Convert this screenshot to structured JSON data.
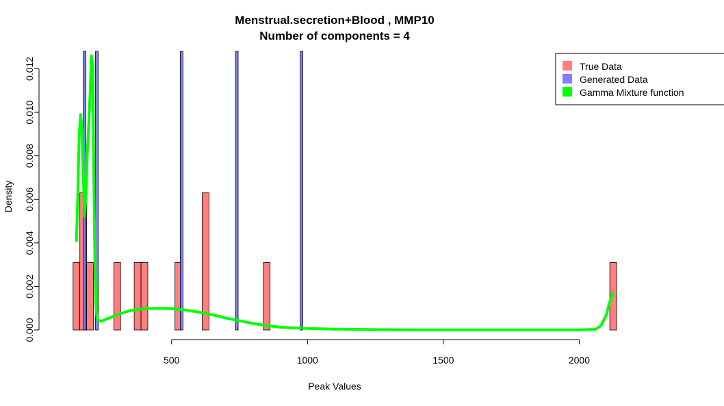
{
  "chart_data": {
    "type": "bar",
    "title": "Menstrual.secretion+Blood , MMP10",
    "subtitle": "Number of components =  4",
    "xlabel": "Peak Values",
    "ylabel": "Density",
    "xlim": [
      50,
      2150
    ],
    "ylim": [
      0,
      0.0128
    ],
    "x_ticks": [
      500,
      1000,
      1500,
      2000
    ],
    "x_tick_labels": [
      "500",
      "1000",
      "1500",
      "2000"
    ],
    "y_ticks": [
      0.0,
      0.002,
      0.004,
      0.006,
      0.008,
      0.01,
      0.012
    ],
    "y_tick_labels": [
      "0.000",
      "0.002",
      "0.004",
      "0.006",
      "0.008",
      "0.010",
      "0.012"
    ],
    "bin_width": 25,
    "series": [
      {
        "name": "True Data",
        "color": "#ff7f7f",
        "bins": [
          {
            "x": 150,
            "density": 0.0031
          },
          {
            "x": 175,
            "density": 0.0063
          },
          {
            "x": 200,
            "density": 0.0031
          },
          {
            "x": 300,
            "density": 0.0031
          },
          {
            "x": 375,
            "density": 0.0031
          },
          {
            "x": 400,
            "density": 0.0031
          },
          {
            "x": 525,
            "density": 0.0031
          },
          {
            "x": 625,
            "density": 0.0063
          },
          {
            "x": 850,
            "density": 0.0031
          },
          {
            "x": 2125,
            "density": 0.0031
          }
        ]
      },
      {
        "name": "Generated Data",
        "color": "#8080ff",
        "bar_width": 10,
        "bins": [
          {
            "x": 180,
            "density": 0.0135
          },
          {
            "x": 225,
            "density": 0.0135
          },
          {
            "x": 537,
            "density": 0.0135
          },
          {
            "x": 740,
            "density": 0.0135
          },
          {
            "x": 978,
            "density": 0.0135
          }
        ]
      },
      {
        "name": "Gamma Mixture function",
        "color": "#00ff00",
        "type": "line",
        "x": [
          150,
          155,
          160,
          165,
          170,
          175,
          180,
          185,
          190,
          195,
          200,
          205,
          210,
          212,
          215,
          218,
          222,
          226,
          230,
          240,
          260,
          300,
          350,
          400,
          450,
          500,
          550,
          600,
          650,
          700,
          750,
          800,
          850,
          900,
          1000,
          1100,
          1250,
          1400,
          1600,
          1800,
          2000,
          2060,
          2080,
          2100,
          2110,
          2120,
          2125
        ],
        "y": [
          0.0041,
          0.0062,
          0.0089,
          0.0099,
          0.0093,
          0.0072,
          0.0052,
          0.0061,
          0.0081,
          0.0094,
          0.0108,
          0.0126,
          0.0122,
          0.0095,
          0.006,
          0.003,
          0.001,
          0.00055,
          0.00045,
          0.0004,
          0.0005,
          0.0007,
          0.0009,
          0.00098,
          0.001,
          0.00098,
          0.00092,
          0.00082,
          0.0007,
          0.00055,
          0.00042,
          0.0003,
          0.0002,
          0.00013,
          7e-05,
          4e-05,
          2e-05,
          1e-05,
          1e-05,
          1e-05,
          1e-05,
          3e-05,
          0.0002,
          0.0007,
          0.0012,
          0.0016,
          0.0017
        ]
      }
    ],
    "legend": {
      "placement": "top-right",
      "entries": [
        "True Data",
        "Generated Data",
        "Gamma Mixture function"
      ]
    }
  }
}
